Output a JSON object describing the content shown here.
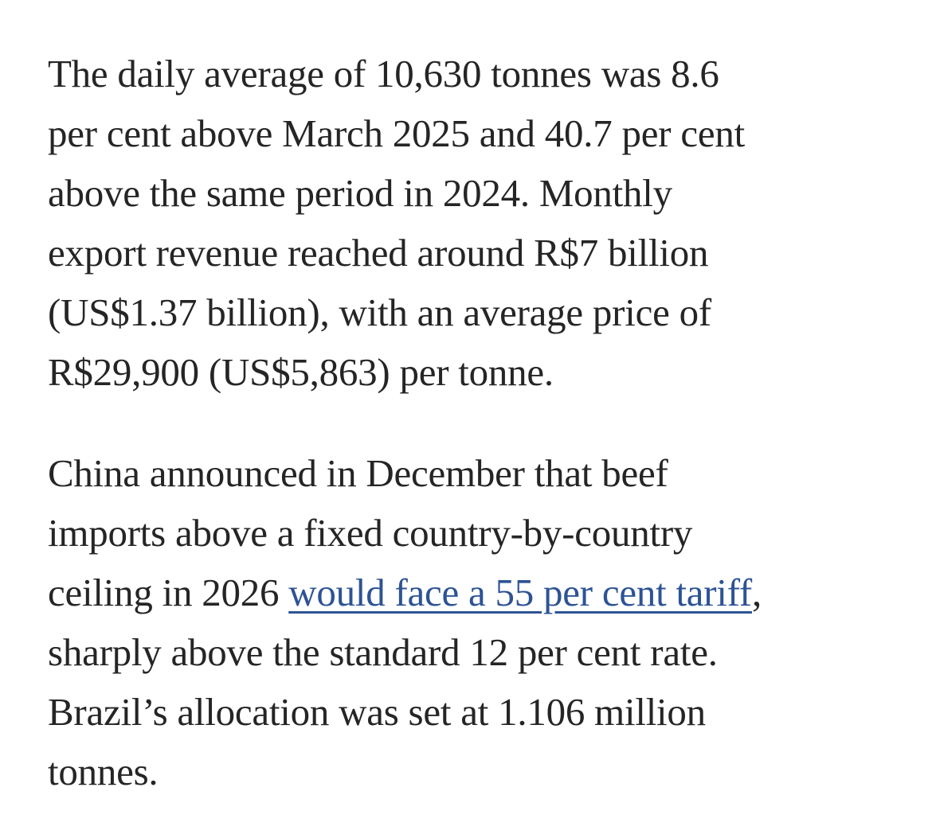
{
  "page": {
    "background": "#ffffff",
    "text_color": "#252525",
    "link_color": "#2d5394"
  },
  "article": {
    "paragraph1": {
      "lines": [
        "The daily average of 10,630 tonnes was 8.6",
        "per cent above March 2025 and 40.7 per cent",
        "above the same period in 2024. Monthly",
        "export revenue reached around R$7 billion",
        "(US$1.37 billion), with an average price of",
        "R$29,900 (US$5,863) per tonne."
      ]
    },
    "paragraph2": {
      "lines_before_link": [
        "China announced in December that beef",
        "imports above a fixed country-by-country"
      ],
      "link_line": {
        "pre": "ceiling in 2026 ",
        "link_text": "would face a 55 per cent tariff",
        "post": ","
      },
      "lines_after_link": [
        "sharply above the standard 12 per cent rate.",
        "Brazil’s allocation was set at 1.106 million",
        "tonnes."
      ]
    }
  }
}
